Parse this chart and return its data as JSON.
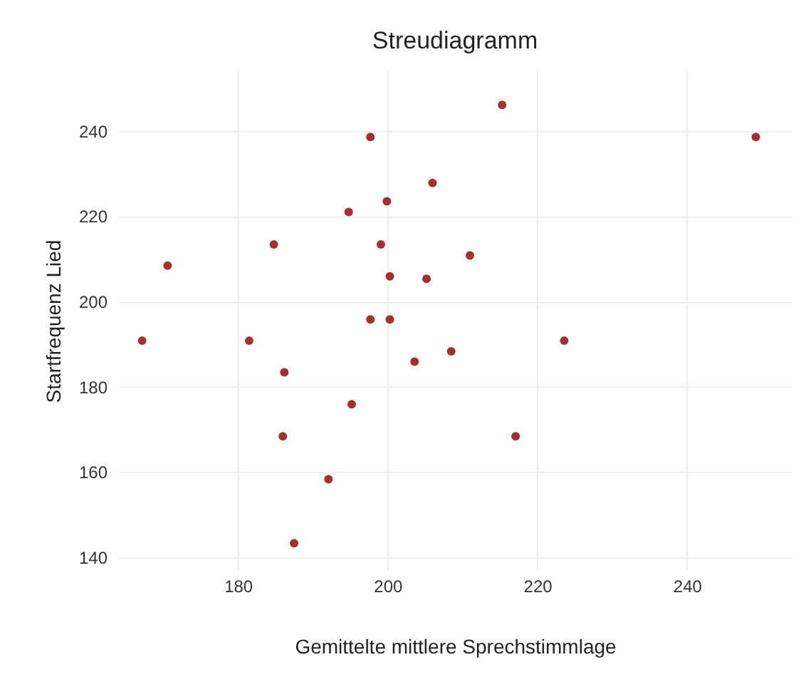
{
  "chart_data": {
    "type": "scatter",
    "title": "Streudiagramm",
    "xlabel": "Gemittelte mittlere Sprechstimmlage",
    "ylabel": "Startfrequenz Lied",
    "x": [
      167.2,
      170.6,
      181.5,
      184.8,
      186.2,
      186.0,
      187.5,
      192.1,
      194.8,
      195.2,
      197.7,
      197.7,
      199.1,
      199.9,
      200.3,
      200.3,
      203.6,
      205.2,
      206.0,
      208.5,
      211.0,
      215.3,
      217.1,
      223.6,
      249.2
    ],
    "series": [
      {
        "color": "#a4302f",
        "values": [
          190.8,
          208.4,
          190.8,
          213.4,
          183.4,
          168.4,
          143.3,
          158.3,
          221.0,
          175.9,
          238.6,
          195.8,
          213.4,
          223.5,
          205.9,
          195.8,
          185.9,
          205.3,
          227.8,
          188.3,
          210.8,
          246.1,
          168.4,
          190.8,
          238.6
        ]
      }
    ],
    "xlim": [
      164,
      254
    ],
    "ylim": [
      137,
      254
    ],
    "xticks": [
      180,
      200,
      220,
      240
    ],
    "yticks": [
      140,
      160,
      180,
      200,
      220,
      240
    ],
    "grid": true,
    "marker": "circle"
  }
}
